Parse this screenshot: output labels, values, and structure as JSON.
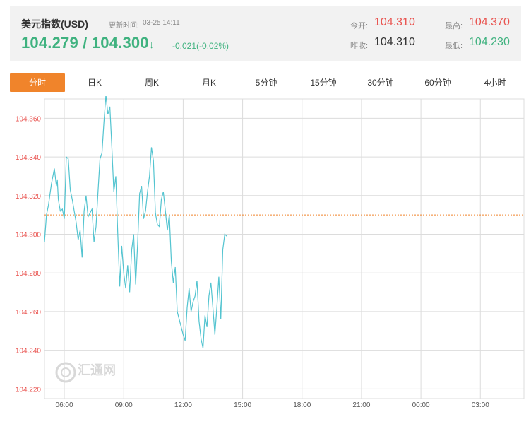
{
  "quote": {
    "title": "美元指数(USD)",
    "update_label": "更新时间:",
    "update_time": "03-25 14:11",
    "price": "104.279 / 104.300",
    "arrow": "↓",
    "change": "-0.021(-0.02%)",
    "open_label": "今开:",
    "open_value": "104.310",
    "prev_close_label": "昨收:",
    "prev_close_value": "104.310",
    "high_label": "最高:",
    "high_value": "104.370",
    "low_label": "最低:",
    "low_value": "104.230"
  },
  "tabs": [
    "分时",
    "日K",
    "周K",
    "月K",
    "5分钟",
    "15分钟",
    "30分钟",
    "60分钟",
    "4小时"
  ],
  "active_tab": "分时",
  "colors": {
    "up": "#e9534f",
    "down": "#3fb27f",
    "accent": "#f0842b",
    "line": "#53c4d0",
    "reference": "#f0842b",
    "grid": "#dcdcdc"
  },
  "watermark": "汇通网 FX678.COM",
  "chart_data": {
    "type": "line",
    "title": "",
    "xlabel": "",
    "ylabel": "",
    "y_ticks": [
      "104.220",
      "104.240",
      "104.260",
      "104.280",
      "104.300",
      "104.320",
      "104.340",
      "104.360"
    ],
    "ylim": [
      104.215,
      104.37
    ],
    "x_ticks": [
      "06:00",
      "09:00",
      "12:00",
      "15:00",
      "18:00",
      "21:00",
      "00:00",
      "03:00"
    ],
    "x_range_hours": [
      5.0,
      29.2
    ],
    "reference_line": 104.31,
    "grid": true,
    "series": [
      {
        "x": [
          5.0,
          5.1,
          5.2,
          5.35,
          5.5,
          5.6,
          5.65,
          5.7,
          5.8,
          5.9,
          6.0,
          6.1,
          6.2,
          6.3,
          6.4,
          6.5,
          6.6,
          6.7,
          6.8,
          6.9,
          7.0,
          7.1,
          7.2,
          7.3,
          7.4,
          7.5,
          7.6,
          7.7,
          7.8,
          7.9,
          8.0,
          8.1,
          8.2,
          8.3,
          8.4,
          8.5,
          8.6,
          8.7,
          8.8,
          8.9,
          9.0,
          9.1,
          9.2,
          9.3,
          9.4,
          9.5,
          9.6,
          9.7,
          9.8,
          9.9,
          10.0,
          10.1,
          10.2,
          10.3,
          10.4,
          10.5,
          10.6,
          10.7,
          10.8,
          10.9,
          11.0,
          11.1,
          11.2,
          11.3,
          11.4,
          11.5,
          11.6,
          11.7,
          11.8,
          11.9,
          12.0,
          12.1,
          12.2,
          12.3,
          12.4,
          12.5,
          12.6,
          12.7,
          12.8,
          12.9,
          13.0,
          13.1,
          13.2,
          13.3,
          13.4,
          13.5,
          13.6,
          13.7,
          13.8,
          13.9,
          14.0,
          14.1,
          14.2
        ],
        "y": [
          104.296,
          104.31,
          104.315,
          104.326,
          104.334,
          104.325,
          104.328,
          104.318,
          104.312,
          104.313,
          104.308,
          104.34,
          104.339,
          104.323,
          104.318,
          104.312,
          104.306,
          104.297,
          104.302,
          104.288,
          104.312,
          104.32,
          104.309,
          104.311,
          104.313,
          104.296,
          104.304,
          104.322,
          104.339,
          104.342,
          104.358,
          104.372,
          104.362,
          104.366,
          104.345,
          104.322,
          104.33,
          104.3,
          104.273,
          104.294,
          104.28,
          104.272,
          104.284,
          104.27,
          104.292,
          104.3,
          104.274,
          104.295,
          104.321,
          104.325,
          104.308,
          104.312,
          104.322,
          104.33,
          104.345,
          104.338,
          104.311,
          104.305,
          104.304,
          104.318,
          104.322,
          104.312,
          104.302,
          104.31,
          104.286,
          104.275,
          104.283,
          104.26,
          104.256,
          104.252,
          104.248,
          104.245,
          104.262,
          104.272,
          104.26,
          104.265,
          104.268,
          104.276,
          104.255,
          104.246,
          104.241,
          104.258,
          104.252,
          104.268,
          104.275,
          104.262,
          104.248,
          104.262,
          104.278,
          104.256,
          104.292,
          104.3,
          104.299
        ]
      }
    ]
  }
}
